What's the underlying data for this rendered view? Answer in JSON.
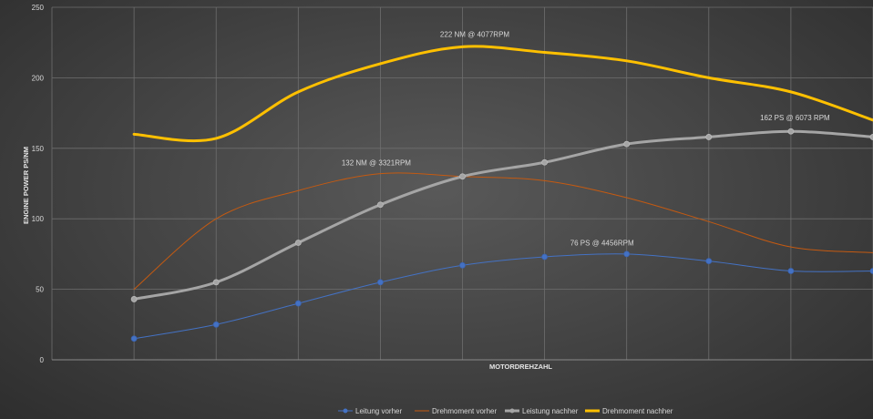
{
  "chart_data": {
    "type": "line",
    "title": "",
    "xlabel": "MOTORDREHZAHL",
    "ylabel": "ENGINE POWER PS/NM",
    "ylim": [
      0,
      250
    ],
    "yticks": [
      0,
      50,
      100,
      150,
      200,
      250
    ],
    "x": [
      1,
      2,
      3,
      4,
      5,
      6,
      7,
      8,
      9,
      10
    ],
    "grid": true,
    "legend_position": "bottom",
    "series": [
      {
        "name": "Leitung vorher",
        "color": "#4472c4",
        "width": 1,
        "markers": true,
        "values": [
          15,
          25,
          40,
          55,
          67,
          73,
          75,
          70,
          63,
          63
        ]
      },
      {
        "name": "Drehmoment vorher",
        "color": "#c55a11",
        "width": 1,
        "markers": false,
        "values": [
          50,
          100,
          120,
          132,
          130,
          127,
          115,
          98,
          80,
          76
        ]
      },
      {
        "name": "Leistung nachher",
        "color": "#a5a5a5",
        "width": 3,
        "markers": true,
        "values": [
          43,
          55,
          83,
          110,
          130,
          140,
          153,
          158,
          162,
          158
        ]
      },
      {
        "name": "Drehmoment nachher",
        "color": "#ffc000",
        "width": 3,
        "markers": false,
        "values": [
          160,
          157,
          190,
          210,
          222,
          218,
          212,
          200,
          190,
          170
        ]
      }
    ],
    "annotations": [
      {
        "text": "222 NM @ 4077RPM",
        "x": 5.15,
        "y": 229
      },
      {
        "text": "132 NM @ 3321RPM",
        "x": 3.95,
        "y": 138
      },
      {
        "text": "162 PS @ 6073 RPM",
        "x": 9.05,
        "y": 170
      },
      {
        "text": "76 PS @ 4456RPM",
        "x": 6.7,
        "y": 81
      }
    ]
  }
}
